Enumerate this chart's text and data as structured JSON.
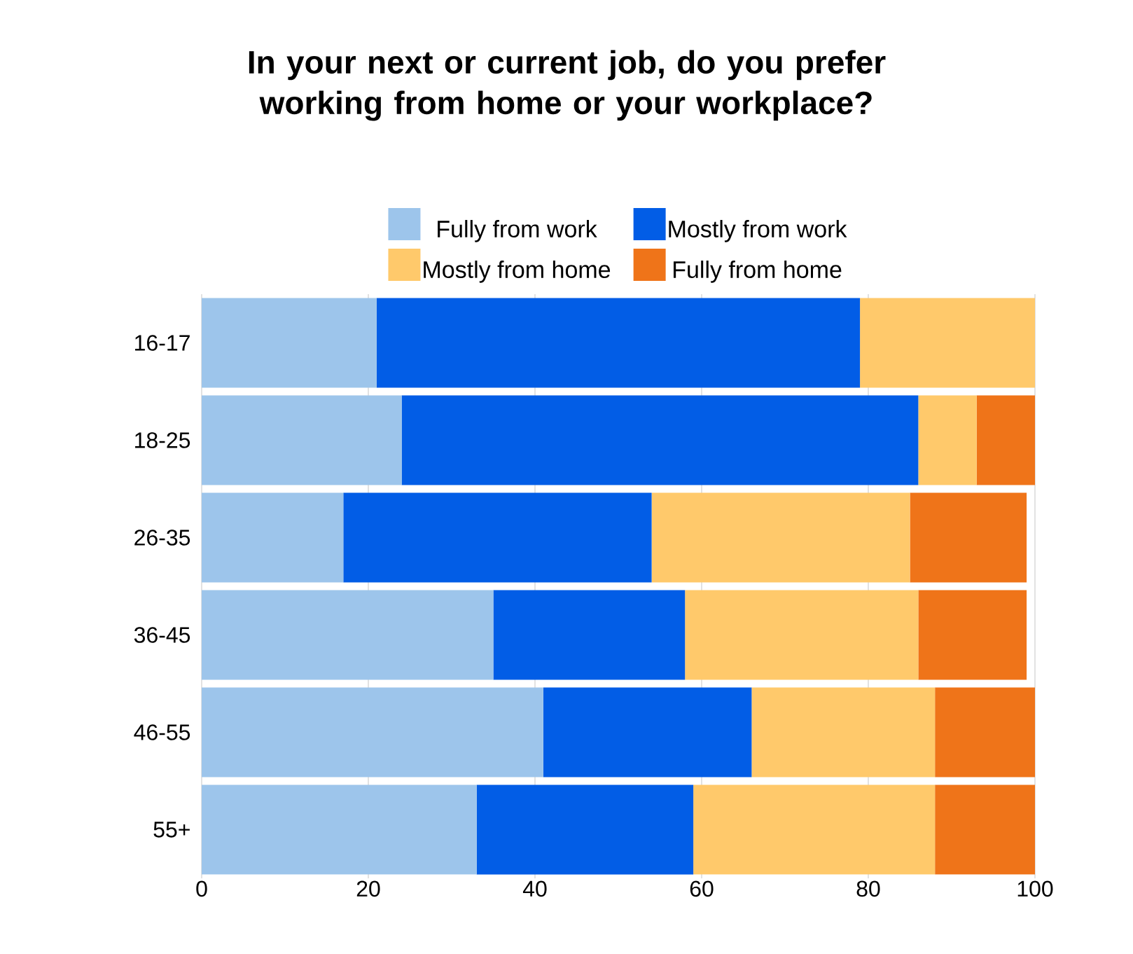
{
  "chart_data": {
    "type": "bar",
    "orientation": "horizontal",
    "stacked": true,
    "title": "In your next or current job, do you prefer working from home or your workplace?",
    "categories": [
      "16-17",
      "18-25",
      "26-35",
      "36-45",
      "46-55",
      "55+"
    ],
    "series": [
      {
        "name": "Fully from work",
        "color": "#9dc5eb",
        "values": [
          21,
          24,
          17,
          35,
          41,
          33
        ]
      },
      {
        "name": "Mostly from work",
        "color": "#025de6",
        "values": [
          58,
          62,
          37,
          23,
          25,
          26
        ]
      },
      {
        "name": "Mostly from home",
        "color": "#ffc96b",
        "values": [
          21,
          7,
          31,
          28,
          22,
          29
        ]
      },
      {
        "name": "Fully from home",
        "color": "#ef7419",
        "values": [
          0,
          7,
          14,
          13,
          12,
          12
        ]
      }
    ],
    "xlim": [
      0,
      100
    ],
    "xticks": [
      0,
      20,
      40,
      60,
      80,
      100
    ],
    "grid": "x",
    "legend": "top"
  }
}
